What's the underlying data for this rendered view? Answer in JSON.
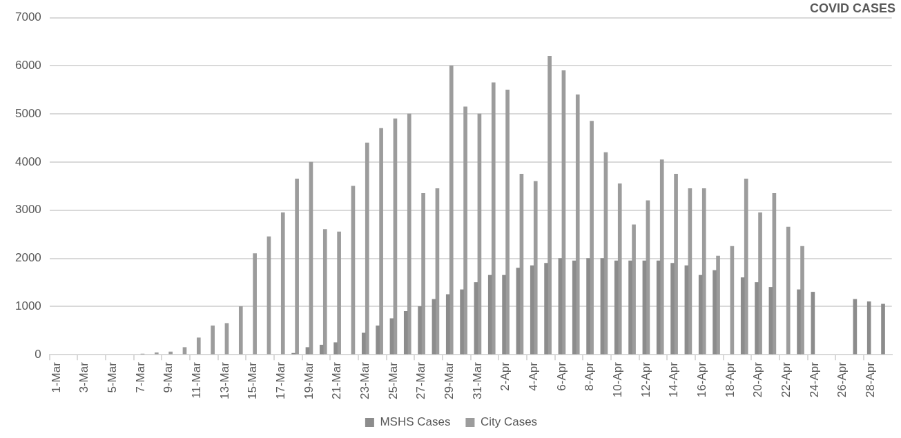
{
  "chart_data": {
    "type": "bar",
    "title": "COVID CASES",
    "categories": [
      "1-Mar",
      null,
      "3-Mar",
      null,
      "5-Mar",
      null,
      "7-Mar",
      null,
      "9-Mar",
      null,
      "11-Mar",
      null,
      "13-Mar",
      null,
      "15-Mar",
      null,
      "17-Mar",
      null,
      "19-Mar",
      null,
      "21-Mar",
      null,
      "23-Mar",
      null,
      "25-Mar",
      null,
      "27-Mar",
      null,
      "29-Mar",
      null,
      "31-Mar",
      null,
      "2-Apr",
      null,
      "4-Apr",
      null,
      "6-Apr",
      null,
      "8-Apr",
      null,
      "10-Apr",
      null,
      "12-Apr",
      null,
      "14-Apr",
      null,
      "16-Apr",
      null,
      "18-Apr",
      null,
      "20-Apr",
      null,
      "22-Apr",
      null,
      "24-Apr",
      null,
      "26-Apr",
      null,
      "28-Apr",
      null
    ],
    "series": [
      {
        "name": "MSHS Cases",
        "color": "#8c8c8c",
        "values": [
          null,
          null,
          null,
          null,
          null,
          null,
          null,
          null,
          null,
          null,
          null,
          null,
          null,
          null,
          null,
          null,
          null,
          30,
          150,
          200,
          250,
          null,
          450,
          600,
          750,
          900,
          1000,
          1150,
          1250,
          1350,
          1500,
          1650,
          1650,
          1800,
          1850,
          1900,
          2000,
          1950,
          2000,
          2000,
          1950,
          1950,
          1950,
          1950,
          1900,
          1850,
          1650,
          1750,
          null,
          1600,
          1500,
          1400,
          null,
          1350,
          1300,
          null,
          null,
          1150,
          1100,
          1050
        ]
      },
      {
        "name": "City Cases",
        "color": "#9c9c9c",
        "values": [
          null,
          null,
          null,
          null,
          null,
          null,
          10,
          40,
          60,
          150,
          350,
          600,
          650,
          1000,
          2100,
          2450,
          2950,
          3650,
          4000,
          2600,
          2550,
          3500,
          4400,
          4700,
          4900,
          5000,
          3350,
          3450,
          6000,
          5150,
          5000,
          5650,
          5500,
          3750,
          3600,
          6200,
          5900,
          5400,
          4850,
          4200,
          3550,
          2700,
          3200,
          4050,
          3750,
          3450,
          3450,
          2050,
          2250,
          3650,
          2950,
          3350,
          2650,
          2250,
          null,
          null,
          null,
          null,
          null,
          null
        ]
      }
    ],
    "ylim": [
      0,
      7000
    ],
    "yticks": [
      0,
      1000,
      2000,
      3000,
      4000,
      5000,
      6000,
      7000
    ],
    "grid": "y",
    "legend": "bottom"
  }
}
